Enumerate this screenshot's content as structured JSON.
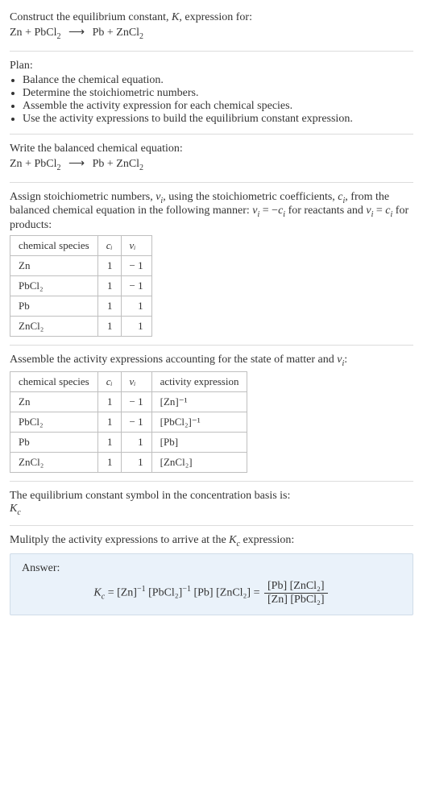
{
  "header": {
    "line1_pre": "Construct the equilibrium constant, ",
    "line1_k": "K",
    "line1_post": ", expression for:"
  },
  "reaction": {
    "lhs1": "Zn",
    "plus": " + ",
    "lhs2a": "PbCl",
    "lhs2b": "2",
    "arrow": "⟶",
    "rhs1": "Pb",
    "rhs2a": "ZnCl",
    "rhs2b": "2"
  },
  "plan": {
    "title": "Plan:",
    "items": [
      "Balance the chemical equation.",
      "Determine the stoichiometric numbers.",
      "Assemble the activity expression for each chemical species.",
      "Use the activity expressions to build the equilibrium constant expression."
    ]
  },
  "balanced": {
    "title": "Write the balanced chemical equation:"
  },
  "stoich": {
    "pre": "Assign stoichiometric numbers, ",
    "nu": "ν",
    "isub": "i",
    "mid1": ", using the stoichiometric coefficients, ",
    "c": "c",
    "mid2": ", from the balanced chemical equation in the following manner: ",
    "rel_reactants": " = −",
    "rel_reactants_post": " for reactants and ",
    "rel_products": " = ",
    "rel_products_post": " for products:",
    "colors": {
      "border": "#bfbfbf"
    },
    "table": {
      "headers": [
        "chemical species",
        "cᵢ",
        "νᵢ"
      ],
      "rows": [
        [
          "Zn",
          "1",
          "− 1"
        ],
        [
          "PbCl₂",
          "1",
          "− 1"
        ],
        [
          "Pb",
          "1",
          "1"
        ],
        [
          "ZnCl₂",
          "1",
          "1"
        ]
      ]
    }
  },
  "activity": {
    "pre": "Assemble the activity expressions accounting for the state of matter and ",
    "nu": "ν",
    "isub": "i",
    "post": ":",
    "table": {
      "headers": [
        "chemical species",
        "cᵢ",
        "νᵢ",
        "activity expression"
      ],
      "rows": [
        [
          "Zn",
          "1",
          "− 1",
          "[Zn]⁻¹"
        ],
        [
          "PbCl₂",
          "1",
          "− 1",
          "[PbCl₂]⁻¹"
        ],
        [
          "Pb",
          "1",
          "1",
          "[Pb]"
        ],
        [
          "ZnCl₂",
          "1",
          "1",
          "[ZnCl₂]"
        ]
      ]
    }
  },
  "symbol": {
    "line": "The equilibrium constant symbol in the concentration basis is:",
    "kc_k": "K",
    "kc_c": "c"
  },
  "multiply": {
    "pre": "Mulitply the activity expressions to arrive at the ",
    "kc_k": "K",
    "kc_c": "c",
    "post": " expression:"
  },
  "answer": {
    "label": "Answer:",
    "lhs_k": "K",
    "lhs_c": "c",
    "eq": " = ",
    "t1": "[Zn]",
    "t1e": "−1",
    "t2": "[PbCl₂]",
    "t2e": "−1",
    "t3": "[Pb]",
    "t4": "[ZnCl₂]",
    "frac_num": "[Pb] [ZnCl₂]",
    "frac_den": "[Zn] [PbCl₂]"
  },
  "style": {
    "body_color": "#333333",
    "hr_color": "#dcdcdc",
    "answer_bg": "#eaf2fa",
    "answer_border": "#d0dce8",
    "table_border": "#bfbfbf",
    "font_size_body": 14,
    "font_size_table": 13,
    "font_size_sub": 10
  }
}
